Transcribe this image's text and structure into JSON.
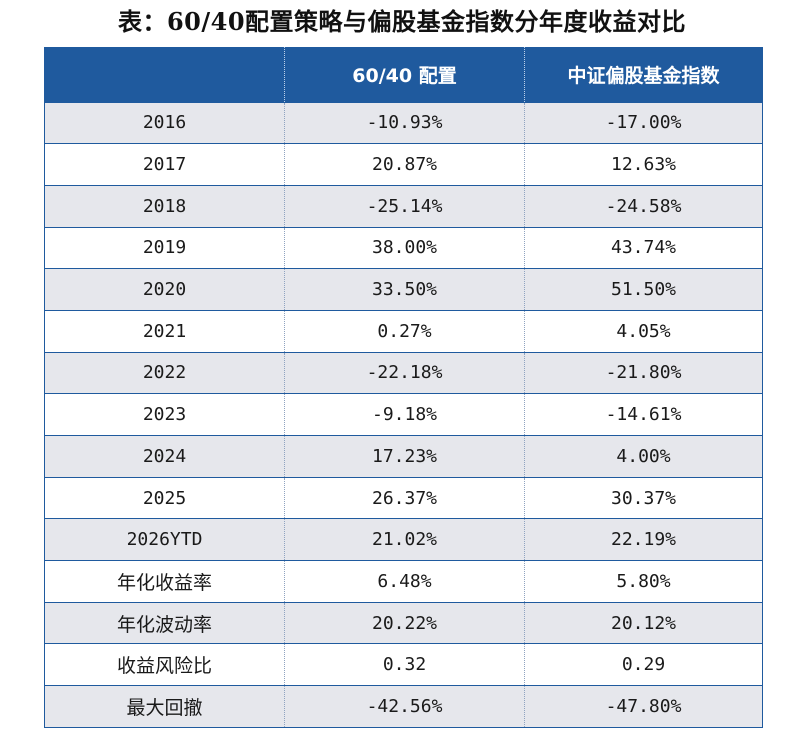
{
  "title": "表：60/40配置策略与偏股基金指数分年度收益对比",
  "table": {
    "headers": [
      "",
      "60/40 配置",
      "中证偏股基金指数"
    ],
    "rows": [
      {
        "label": "2016",
        "portfolio": "-10.93%",
        "index": "-17.00%"
      },
      {
        "label": "2017",
        "portfolio": "20.87%",
        "index": "12.63%"
      },
      {
        "label": "2018",
        "portfolio": "-25.14%",
        "index": "-24.58%"
      },
      {
        "label": "2019",
        "portfolio": "38.00%",
        "index": "43.74%"
      },
      {
        "label": "2020",
        "portfolio": "33.50%",
        "index": "51.50%"
      },
      {
        "label": "2021",
        "portfolio": "0.27%",
        "index": "4.05%"
      },
      {
        "label": "2022",
        "portfolio": "-22.18%",
        "index": "-21.80%"
      },
      {
        "label": "2023",
        "portfolio": "-9.18%",
        "index": "-14.61%"
      },
      {
        "label": "2024",
        "portfolio": "17.23%",
        "index": "4.00%"
      },
      {
        "label": "2025",
        "portfolio": "26.37%",
        "index": "30.37%"
      },
      {
        "label": "2026YTD",
        "portfolio": "21.02%",
        "index": "22.19%"
      },
      {
        "label": "年化收益率",
        "portfolio": "6.48%",
        "index": "5.80%"
      },
      {
        "label": "年化波动率",
        "portfolio": "20.22%",
        "index": "20.12%"
      },
      {
        "label": "收益风险比",
        "portfolio": "0.32",
        "index": "0.29"
      },
      {
        "label": "最大回撤",
        "portfolio": "-42.56%",
        "index": "-47.80%"
      }
    ]
  },
  "colors": {
    "header_bg": "#1f5a9e",
    "header_text": "#ffffff",
    "stripe": "#e6e7ec",
    "border": "#1f5a9e"
  }
}
